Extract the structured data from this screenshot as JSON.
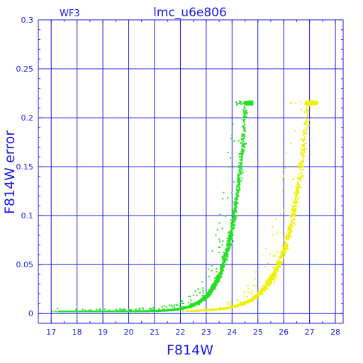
{
  "chart_data": {
    "type": "scatter",
    "title": "lmc_u6e806",
    "chip_label": "WF3",
    "xlabel": "F814W",
    "ylabel": "F814W error",
    "xlim": [
      16.5,
      28.3
    ],
    "ylim": [
      -0.01,
      0.3
    ],
    "x_ticks": [
      17,
      18,
      19,
      20,
      21,
      22,
      23,
      24,
      25,
      26,
      27,
      28
    ],
    "y_ticks": [
      0,
      0.05,
      0.1,
      0.15,
      0.2,
      0.25,
      0.3
    ],
    "y_tick_labels": [
      "0",
      "0.05",
      "0.1",
      "0.15",
      "0.2",
      "0.25",
      "0.3"
    ],
    "grid": true,
    "colors": {
      "axis": "#1a1ae6",
      "grid": "#1a1ae6",
      "green": "#22e022",
      "yellow": "#f0f000"
    },
    "series": [
      {
        "color": "green",
        "curve": {
          "x_start": 17.0,
          "x_end": 24.8,
          "x_ref": 24.5,
          "y_ref": 0.2,
          "scale": 1.7
        },
        "floor": 0.002,
        "points_approx": 2600,
        "sample_points": [
          [
            17.0,
            0.003
          ],
          [
            19.0,
            0.006
          ],
          [
            20.0,
            0.01
          ],
          [
            21.0,
            0.018
          ],
          [
            22.0,
            0.03
          ],
          [
            23.0,
            0.055
          ],
          [
            23.5,
            0.08
          ],
          [
            24.0,
            0.115
          ],
          [
            24.5,
            0.2
          ],
          [
            24.8,
            0.215
          ]
        ],
        "max_error": 0.217
      },
      {
        "color": "yellow",
        "curve": {
          "x_start": 22.0,
          "x_end": 27.3,
          "x_ref": 26.9,
          "y_ref": 0.2,
          "scale": 1.3
        },
        "floor": 0.002,
        "points_approx": 1300,
        "sample_points": [
          [
            22.0,
            0.003
          ],
          [
            23.0,
            0.006
          ],
          [
            24.0,
            0.015
          ],
          [
            25.0,
            0.04
          ],
          [
            25.5,
            0.06
          ],
          [
            26.0,
            0.1
          ],
          [
            26.5,
            0.15
          ],
          [
            26.9,
            0.2
          ],
          [
            27.3,
            0.217
          ]
        ],
        "max_error": 0.217
      }
    ]
  }
}
